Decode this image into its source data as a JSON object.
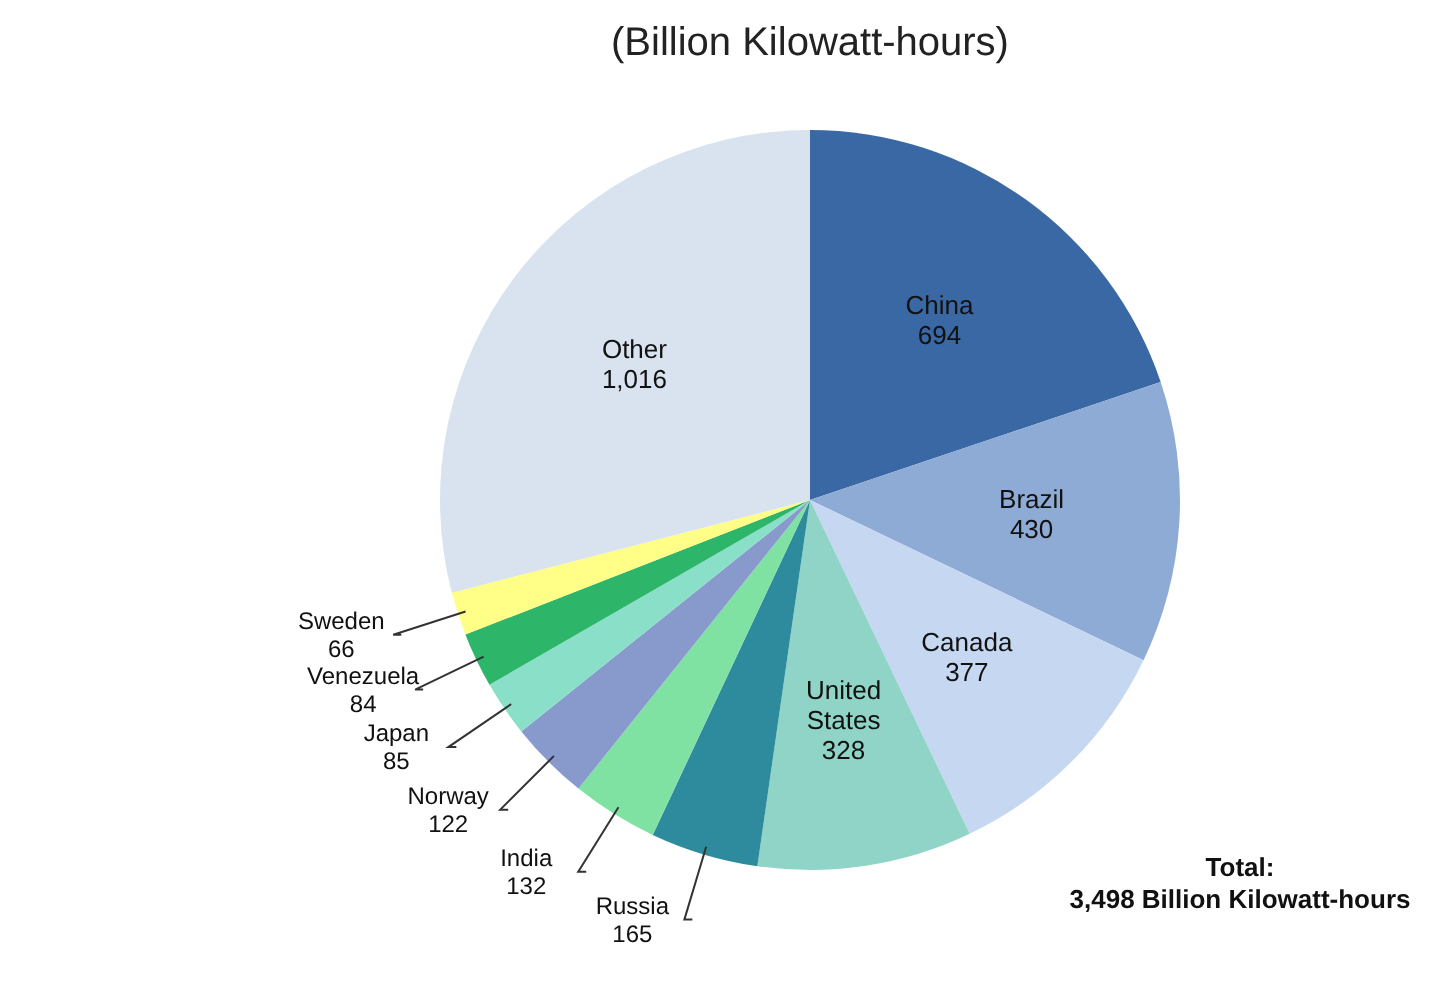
{
  "chart_data": {
    "type": "pie",
    "title": "(Billion Kilowatt-hours)",
    "categories": [
      "China",
      "Brazil",
      "Canada",
      "United States",
      "Russia",
      "India",
      "Norway",
      "Japan",
      "Venezuela",
      "Sweden",
      "Other"
    ],
    "values": [
      694,
      430,
      377,
      328,
      165,
      132,
      122,
      85,
      84,
      66,
      1016
    ],
    "colors": [
      "#3a68a4",
      "#8eabd6",
      "#c6d8f1",
      "#8fd4c6",
      "#2e8b9e",
      "#7fe2a2",
      "#8899cc",
      "#8adfc9",
      "#2db56a",
      "#ffff88",
      "#d9e3ef"
    ],
    "value_labels": [
      "694",
      "430",
      "377",
      "328",
      "165",
      "132",
      "122",
      "85",
      "84",
      "66",
      "1,016"
    ],
    "annotations": [
      "Total:\n3,498 Billion Kilowatt-hours"
    ]
  }
}
